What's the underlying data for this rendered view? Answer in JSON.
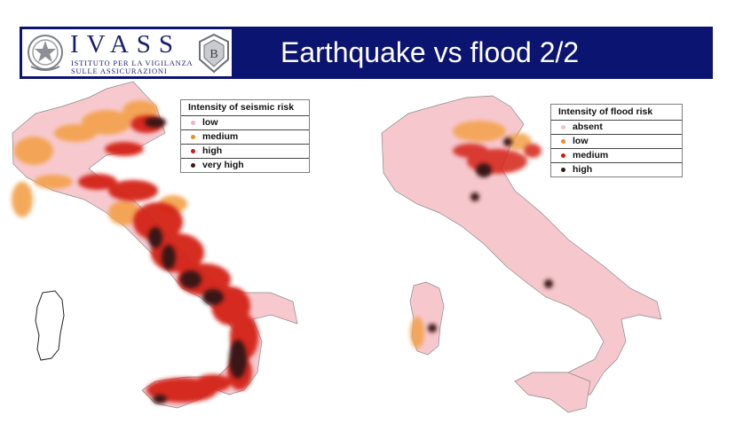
{
  "header": {
    "brand": "IVASS",
    "brand_sub1": "ISTITUTO PER LA VIGILANZA",
    "brand_sub2": "SULLE ASSICURAZIONI",
    "title": "Earthquake vs flood 2/2",
    "background_color": "#0b1470"
  },
  "maps": [
    {
      "legend_title": "Intensity of seismic risk",
      "legend": [
        {
          "label": "low",
          "color": "#f2b3c0"
        },
        {
          "label": "medium",
          "color": "#f08a22"
        },
        {
          "label": "high",
          "color": "#d21a10"
        },
        {
          "label": "very high",
          "color": "#3a1a12"
        }
      ]
    },
    {
      "legend_title": "Intensity of flood risk",
      "legend": [
        {
          "label": "absent",
          "color": "#f2c2c8"
        },
        {
          "label": "low",
          "color": "#f08a22"
        },
        {
          "label": "medium",
          "color": "#d21a10"
        },
        {
          "label": "high",
          "color": "#3a1a12"
        }
      ]
    }
  ]
}
